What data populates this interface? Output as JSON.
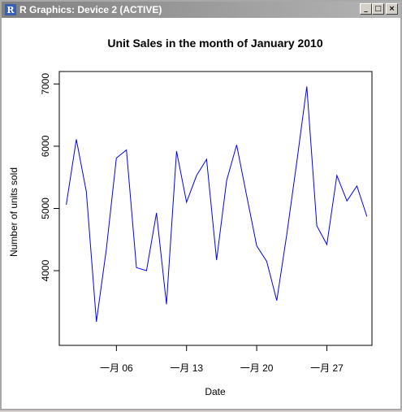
{
  "window": {
    "title": "R Graphics: Device 2 (ACTIVE)",
    "app_icon_glyph": "R",
    "buttons": {
      "minimize": "_",
      "maximize": "□",
      "close": "×"
    }
  },
  "chart_data": {
    "type": "line",
    "title": "Unit Sales in the month of January 2010",
    "xlabel": "Date",
    "ylabel": "Number of units sold",
    "line_color": "#0000ff",
    "x_ticks": [
      "一月 06",
      "一月 13",
      "一月 20",
      "一月 27"
    ],
    "x_tick_days": [
      6,
      13,
      20,
      27
    ],
    "y_ticks": [
      "4000",
      "5000",
      "6000",
      "7000"
    ],
    "y_tick_values": [
      4000,
      5000,
      6000,
      7000
    ],
    "xlim": [
      0.3,
      31.5
    ],
    "ylim": [
      2800,
      7200
    ],
    "x": [
      1,
      2,
      3,
      4,
      5,
      6,
      7,
      8,
      9,
      10,
      11,
      12,
      13,
      14,
      15,
      16,
      17,
      18,
      19,
      20,
      21,
      22,
      23,
      24,
      25,
      26,
      27,
      28,
      29,
      30,
      31
    ],
    "y": [
      5060,
      6110,
      5270,
      3180,
      4350,
      5810,
      5940,
      4050,
      4000,
      4930,
      3460,
      5920,
      5100,
      5530,
      5790,
      4170,
      5450,
      6020,
      5200,
      4400,
      4150,
      3520,
      4580,
      5750,
      6960,
      4720,
      4420,
      5530,
      5120,
      5360,
      4870
    ]
  }
}
